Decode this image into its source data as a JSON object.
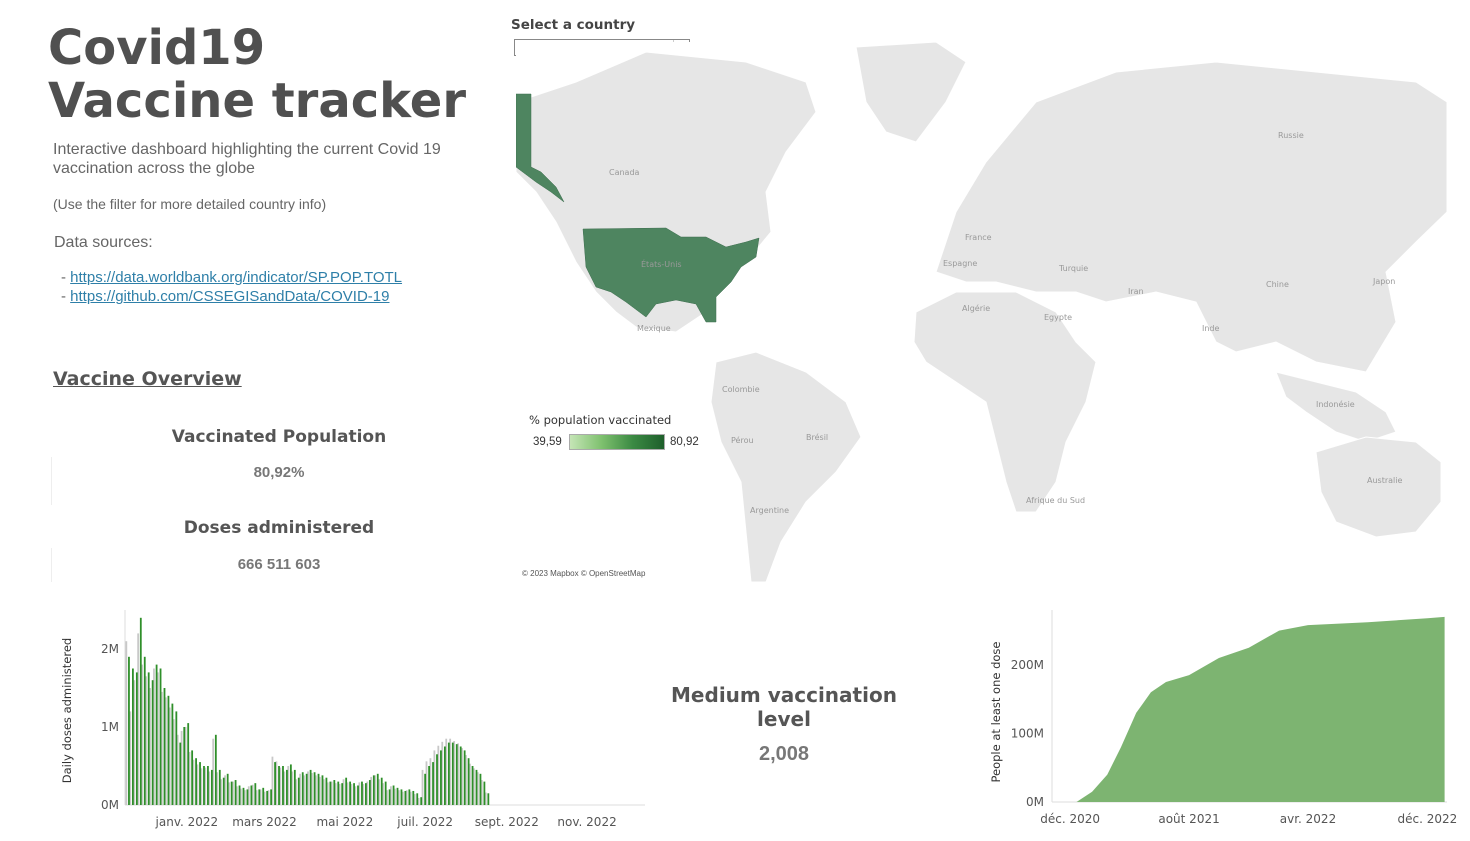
{
  "header": {
    "title": "Covid19 Vaccine tracker",
    "description": "Interactive dashboard highlighting the current Covid 19 vaccination across the globe",
    "hint": "(Use the filter for more detailed country info)"
  },
  "sources": {
    "title": "Data sources:",
    "bullet": "-",
    "links": [
      "https://data.worldbank.org/indicator/SP.POP.TOTL",
      "https://github.com/CSSEGISandData/COVID-19"
    ]
  },
  "overview": {
    "heading": "Vaccine Overview",
    "vaccinated_label": "Vaccinated Population",
    "vaccinated_value": "80,92%",
    "doses_label": "Doses administered",
    "doses_value": "666 511 603"
  },
  "filter": {
    "label": "Select a country",
    "selected": "US"
  },
  "map": {
    "highlight_color": "#4e8560",
    "country_labels": [
      "Canada",
      "États-Unis",
      "Mexique",
      "Colombie",
      "Pérou",
      "Brésil",
      "Argentine",
      "France",
      "Espagne",
      "Algérie",
      "Egypte",
      "Turquie",
      "Iran",
      "Inde",
      "Chine",
      "Japon",
      "Russie",
      "Indonésie",
      "Australie",
      "Afrique du Sud"
    ],
    "attribution": "© 2023 Mapbox © OpenStreetMap",
    "legend": {
      "title": "% population vaccinated",
      "min": "39,59",
      "max": "80,92"
    }
  },
  "medium": {
    "label": "Medium vaccination level",
    "value": "2,008"
  },
  "chart_data": [
    {
      "type": "bar",
      "ylabel": "Daily doses administered",
      "y_ticks": [
        "0M",
        "1M",
        "2M"
      ],
      "x_ticks": [
        "janv. 2022",
        "mars 2022",
        "mai 2022",
        "juil. 2022",
        "sept. 2022",
        "nov. 2022"
      ],
      "ylim": [
        0,
        2500000
      ],
      "x_range": [
        "2021-11-15",
        "2022-12-15"
      ],
      "x_tick_dates": [
        "2022-01-01",
        "2022-03-01",
        "2022-05-01",
        "2022-07-01",
        "2022-09-01",
        "2022-11-01"
      ],
      "series": [
        {
          "color": "#2f8f2a",
          "dates_start": "2021-11-18",
          "interval_days": 3,
          "values": [
            1900000,
            1750000,
            1700000,
            2400000,
            1900000,
            1700000,
            1600000,
            1800000,
            1750000,
            1500000,
            1400000,
            1300000,
            1200000,
            800000,
            1000000,
            1050000,
            700000,
            600000,
            550000,
            500000,
            500000,
            450000,
            900000,
            450000,
            350000,
            400000,
            300000,
            320000,
            250000,
            220000,
            200000,
            250000,
            280000,
            200000,
            220000,
            180000,
            200000,
            550000,
            500000,
            500000,
            450000,
            520000,
            450000,
            350000,
            420000,
            400000,
            450000,
            420000,
            400000,
            380000,
            350000,
            300000,
            320000,
            300000,
            280000,
            350000,
            300000,
            280000,
            250000,
            300000,
            280000,
            320000,
            380000,
            400000,
            350000,
            300000,
            200000,
            250000,
            220000,
            200000,
            180000,
            200000,
            180000,
            150000,
            100000,
            400000,
            500000,
            550000,
            650000,
            700000,
            750000,
            800000,
            800000,
            780000,
            750000,
            700000,
            600000,
            500000,
            450000,
            400000,
            300000,
            150000
          ]
        },
        {
          "color": "#c8c8c8",
          "dates_start": "2021-11-16",
          "interval_days": 3,
          "values": [
            2100000,
            1200000,
            1600000,
            2200000,
            1800000,
            1650000,
            1500000,
            1750000,
            1700000,
            1450000,
            1380000,
            1250000,
            1100000,
            900000,
            950000,
            1000000,
            680000,
            580000,
            520000,
            470000,
            480000,
            430000,
            850000,
            420000,
            330000,
            380000,
            290000,
            300000,
            240000,
            210000,
            190000,
            240000,
            260000,
            190000,
            200000,
            170000,
            190000,
            620000,
            560000,
            480000,
            430000,
            500000,
            430000,
            330000,
            400000,
            380000,
            430000,
            410000,
            380000,
            360000,
            330000,
            290000,
            300000,
            280000,
            270000,
            330000,
            290000,
            270000,
            240000,
            290000,
            270000,
            300000,
            360000,
            380000,
            330000,
            280000,
            190000,
            240000,
            210000,
            190000,
            170000,
            190000,
            170000,
            140000,
            90000,
            450000,
            560000,
            600000,
            700000,
            760000,
            810000,
            850000,
            850000,
            820000,
            790000,
            730000,
            640000,
            530000,
            470000,
            420000,
            320000,
            160000
          ]
        }
      ]
    },
    {
      "type": "area",
      "ylabel": "People at least one dose",
      "y_ticks": [
        "0M",
        "100M",
        "200M"
      ],
      "x_ticks": [
        "déc. 2020",
        "août 2021",
        "avr. 2022",
        "déc. 2022"
      ],
      "ylim": [
        0,
        280000000
      ],
      "x_range": [
        "2020-10-25",
        "2023-01-10"
      ],
      "x_tick_dates": [
        "2020-12-01",
        "2021-08-01",
        "2022-04-01",
        "2022-12-01"
      ],
      "color": "#7db471",
      "x": [
        "2020-12-14",
        "2021-01-15",
        "2021-02-15",
        "2021-03-15",
        "2021-04-15",
        "2021-05-15",
        "2021-06-15",
        "2021-08-01",
        "2021-10-01",
        "2021-12-01",
        "2022-02-01",
        "2022-04-01",
        "2022-08-01",
        "2022-12-01",
        "2023-01-05"
      ],
      "y": [
        0,
        15000000,
        40000000,
        80000000,
        130000000,
        160000000,
        175000000,
        185000000,
        210000000,
        225000000,
        250000000,
        258000000,
        262000000,
        268000000,
        270000000
      ]
    }
  ]
}
